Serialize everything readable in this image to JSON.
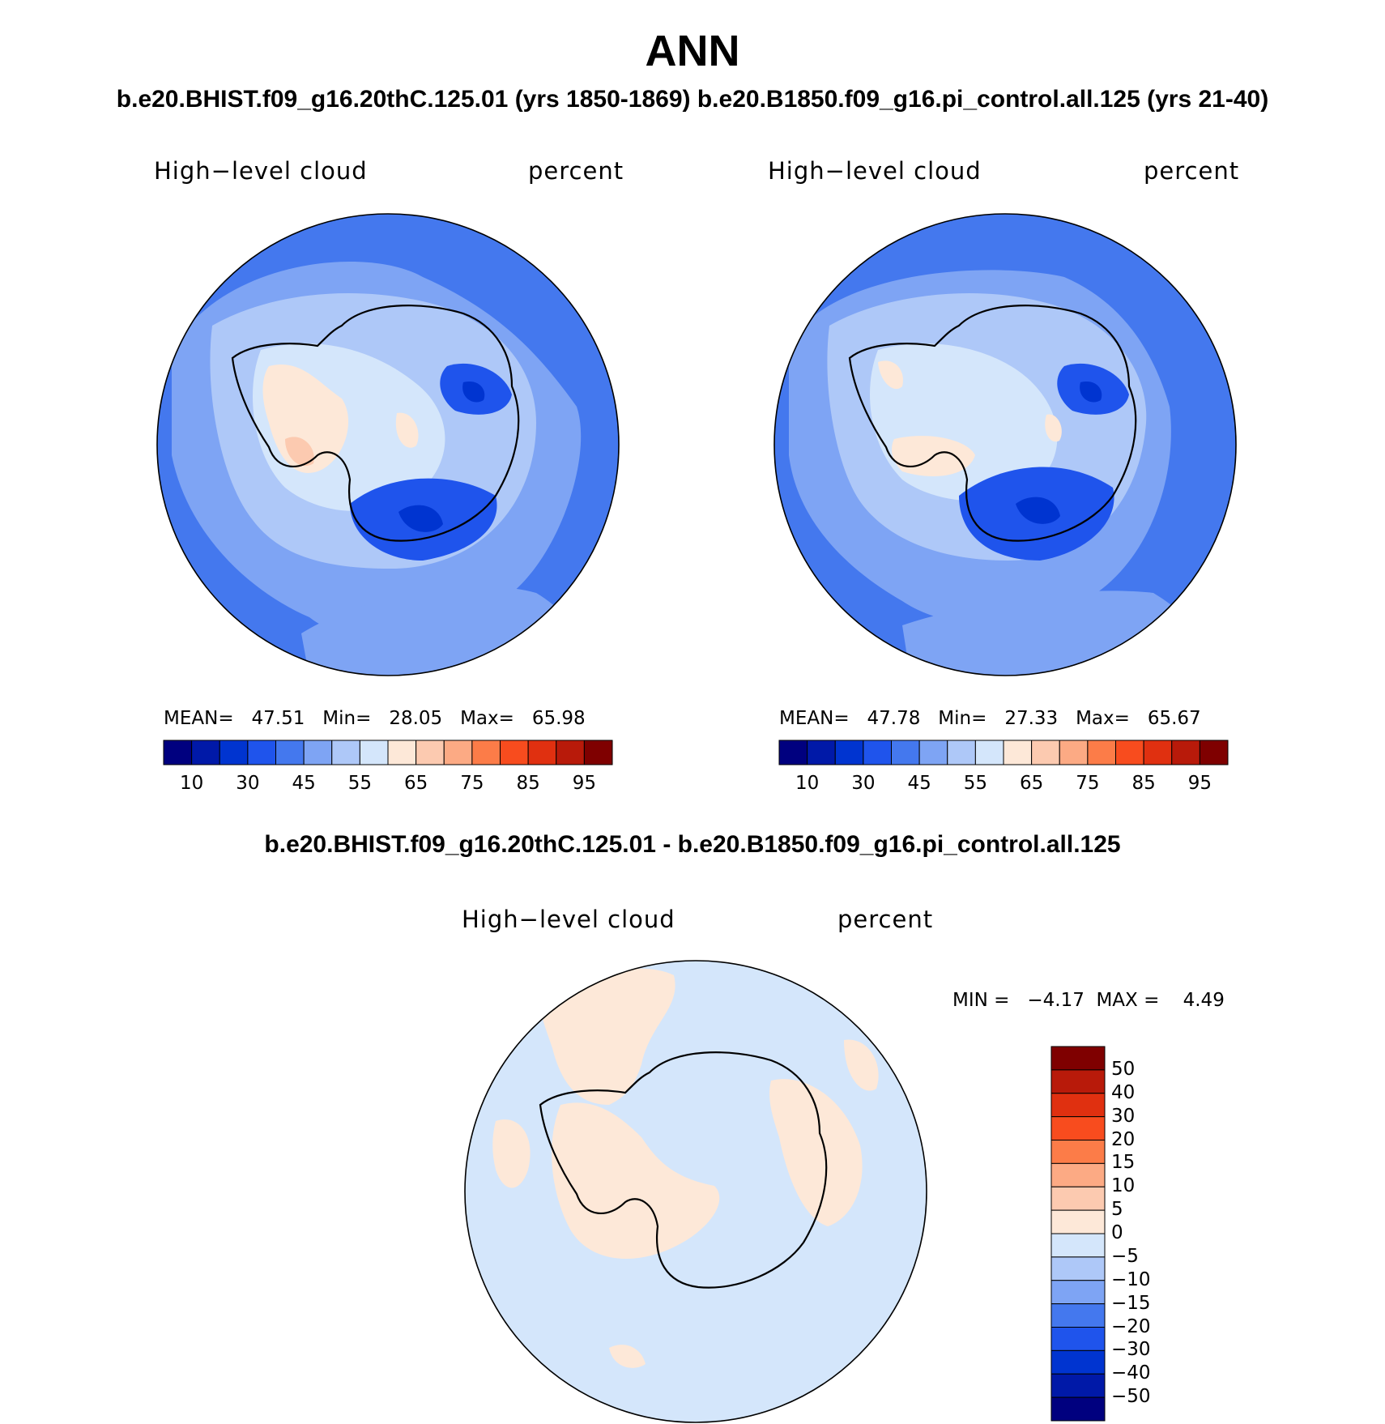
{
  "title": "ANN",
  "subtitle": "b.e20.BHIST.f09_g16.20thC.125.01 (yrs 1850-1869)  b.e20.B1850.f09_g16.pi_control.all.125 (yrs 21-40)",
  "diff_title": "b.e20.BHIST.f09_g16.20thC.125.01 - b.e20.B1850.f09_g16.pi_control.all.125",
  "panels": [
    {
      "variable": "High−level cloud",
      "units": "percent",
      "stats": "MEAN=   47.51   Min=   28.05   Max=   65.98"
    },
    {
      "variable": "High−level cloud",
      "units": "percent",
      "stats": "MEAN=   47.78   Min=   27.33   Max=   65.67"
    }
  ],
  "diff_panel": {
    "variable": "High−level cloud",
    "units": "percent",
    "stats": "MIN =   −4.17  MAX =    4.49"
  },
  "colorbar_top": {
    "colors": [
      "#00007f",
      "#0019a8",
      "#0034d0",
      "#1f54ec",
      "#4478ee",
      "#7ea4f4",
      "#aec8f8",
      "#d4e6fb",
      "#fde8d8",
      "#fccab0",
      "#fcaa84",
      "#fc7c48",
      "#f84c1e",
      "#e03010",
      "#b81a0a",
      "#7f0000"
    ],
    "tick_labels": [
      "10",
      "30",
      "45",
      "55",
      "65",
      "75",
      "85",
      "95"
    ]
  },
  "colorbar_diff": {
    "colors_top_to_bottom": [
      "#7f0000",
      "#b81a0a",
      "#e03010",
      "#f84c1e",
      "#fc7c48",
      "#fcaa84",
      "#fccab0",
      "#fde8d8",
      "#d4e6fb",
      "#aec8f8",
      "#7ea4f4",
      "#4478ee",
      "#1f54ec",
      "#0034d0",
      "#0019a8",
      "#00007f"
    ],
    "tick_labels": [
      "50",
      "40",
      "30",
      "20",
      "15",
      "10",
      "5",
      "0",
      "−5",
      "−10",
      "−15",
      "−20",
      "−30",
      "−40",
      "−50"
    ]
  },
  "map_colors": {
    "ocean_mid": "#4478ee",
    "ocean_light": "#7ea4f4",
    "ice_light": "#aec8f8",
    "ice_pale": "#d4e6fb",
    "warm": "#fde8d8",
    "warm2": "#fccab0",
    "deep": "#1f54ec",
    "deeper": "#0034d0",
    "diff_neg": "#d4e6fb",
    "diff_pos": "#fde8d8"
  }
}
